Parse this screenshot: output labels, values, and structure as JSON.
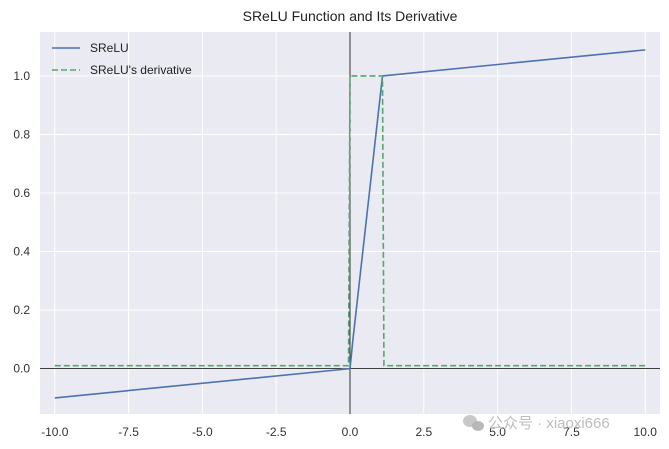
{
  "chart_data": {
    "type": "line",
    "title": "SReLU Function and Its Derivative",
    "xlabel": "",
    "ylabel": "",
    "xlim": [
      -10.5,
      10.5
    ],
    "ylim": [
      -0.155,
      1.15
    ],
    "xticks": [
      -10.0,
      -7.5,
      -5.0,
      -2.5,
      0.0,
      2.5,
      5.0,
      7.5,
      10.0
    ],
    "xtick_labels": [
      "-10.0",
      "-7.5",
      "-5.0",
      "-2.5",
      "0.0",
      "2.5",
      "5.0",
      "7.5",
      "10.0"
    ],
    "yticks": [
      0.0,
      0.2,
      0.4,
      0.6,
      0.8,
      1.0
    ],
    "ytick_labels": [
      "0.0",
      "0.2",
      "0.4",
      "0.6",
      "0.8",
      "1.0"
    ],
    "grid": true,
    "legend_position": "top-left",
    "series": [
      {
        "name": "SReLU",
        "style": "solid",
        "color": "#4c72b0",
        "x": [
          -10.0,
          0.0,
          0.1,
          1.1,
          10.0
        ],
        "y": [
          -0.1,
          0.0,
          0.1,
          1.0,
          1.089
        ]
      },
      {
        "name": "SReLU's derivative",
        "style": "dashed",
        "color": "#55a868",
        "x": [
          -10.0,
          -0.05,
          0.0,
          0.05,
          0.95,
          1.1,
          1.15,
          10.0
        ],
        "y": [
          0.01,
          0.01,
          1.0,
          1.0,
          1.0,
          1.0,
          0.01,
          0.01
        ]
      }
    ],
    "reference_lines": {
      "x": 0,
      "y": 0,
      "color": "#000000"
    }
  },
  "watermark": {
    "text": "公众号 · xiaoxi666"
  },
  "colors": {
    "plot_background": "#eaeaf2",
    "grid": "#ffffff"
  }
}
